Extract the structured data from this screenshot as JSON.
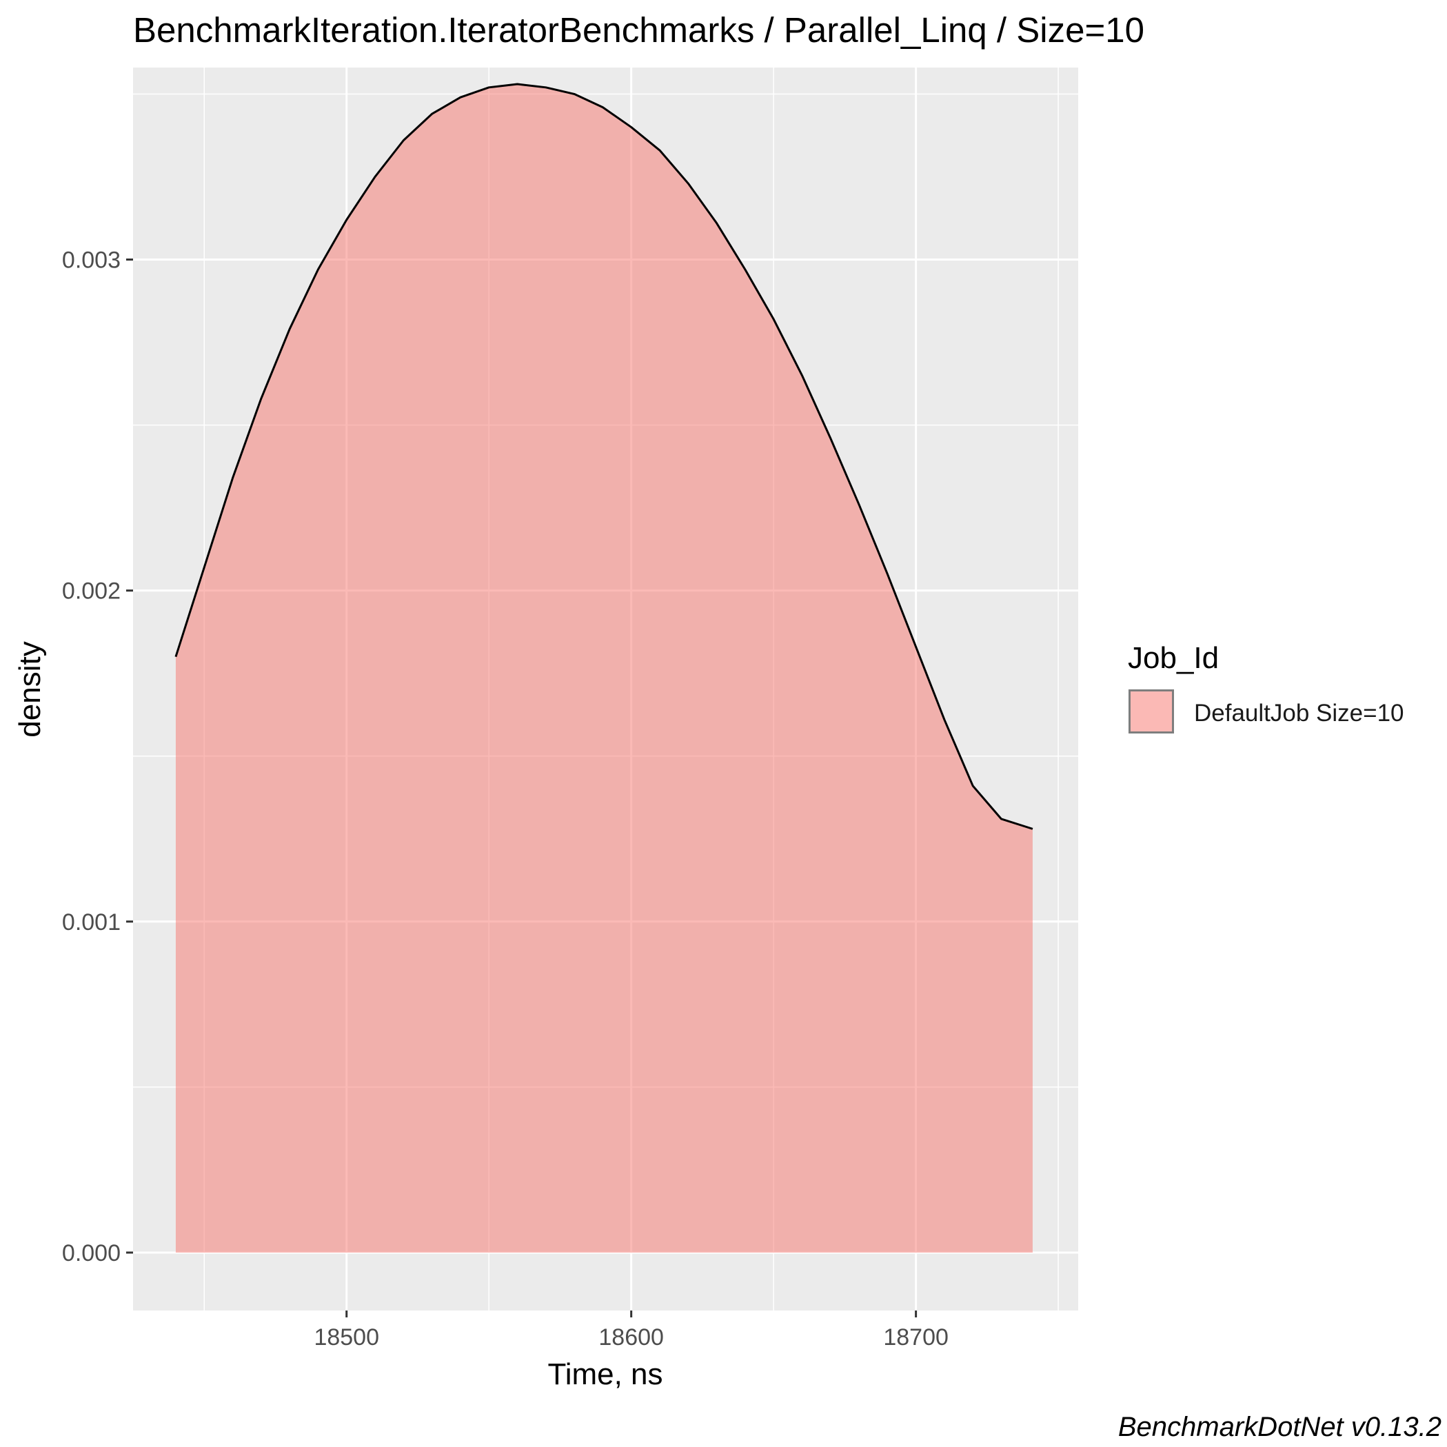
{
  "title": "BenchmarkIteration.IteratorBenchmarks / Parallel_Linq / Size=10",
  "caption": "BenchmarkDotNet v0.13.2",
  "colors": {
    "panel": "#ebebeb",
    "grid": "#ffffff",
    "fill": "#f8766d",
    "line": "#000000"
  },
  "chart_data": {
    "type": "area",
    "xlabel": "Time, ns",
    "ylabel": "density",
    "xlim": [
      18425,
      18757
    ],
    "ylim": [
      -0.000175,
      0.00358
    ],
    "x_ticks": [
      18500,
      18600,
      18700
    ],
    "y_ticks": [
      0.0,
      0.001,
      0.002,
      0.003
    ],
    "x_tick_labels": [
      "18500",
      "18600",
      "18700"
    ],
    "y_tick_labels": [
      "0.000",
      "0.001",
      "0.002",
      "0.003"
    ],
    "grid": true,
    "legend": {
      "title": "Job_Id",
      "position": "right",
      "entries": [
        "DefaultJob Size=10"
      ]
    },
    "series": [
      {
        "name": "DefaultJob Size=10",
        "x": [
          18440,
          18450,
          18460,
          18470,
          18480,
          18490,
          18500,
          18510,
          18520,
          18530,
          18540,
          18550,
          18560,
          18570,
          18580,
          18590,
          18600,
          18610,
          18620,
          18630,
          18640,
          18650,
          18660,
          18670,
          18680,
          18690,
          18700,
          18710,
          18720,
          18730,
          18741
        ],
        "y": [
          0.0018,
          0.00207,
          0.00234,
          0.00258,
          0.00279,
          0.00297,
          0.00312,
          0.00325,
          0.00336,
          0.00344,
          0.00349,
          0.00352,
          0.00353,
          0.00352,
          0.0035,
          0.00346,
          0.0034,
          0.00333,
          0.00323,
          0.00311,
          0.00297,
          0.00282,
          0.00265,
          0.00246,
          0.00226,
          0.00205,
          0.00183,
          0.00161,
          0.00141,
          0.00131,
          0.00128
        ]
      }
    ]
  }
}
